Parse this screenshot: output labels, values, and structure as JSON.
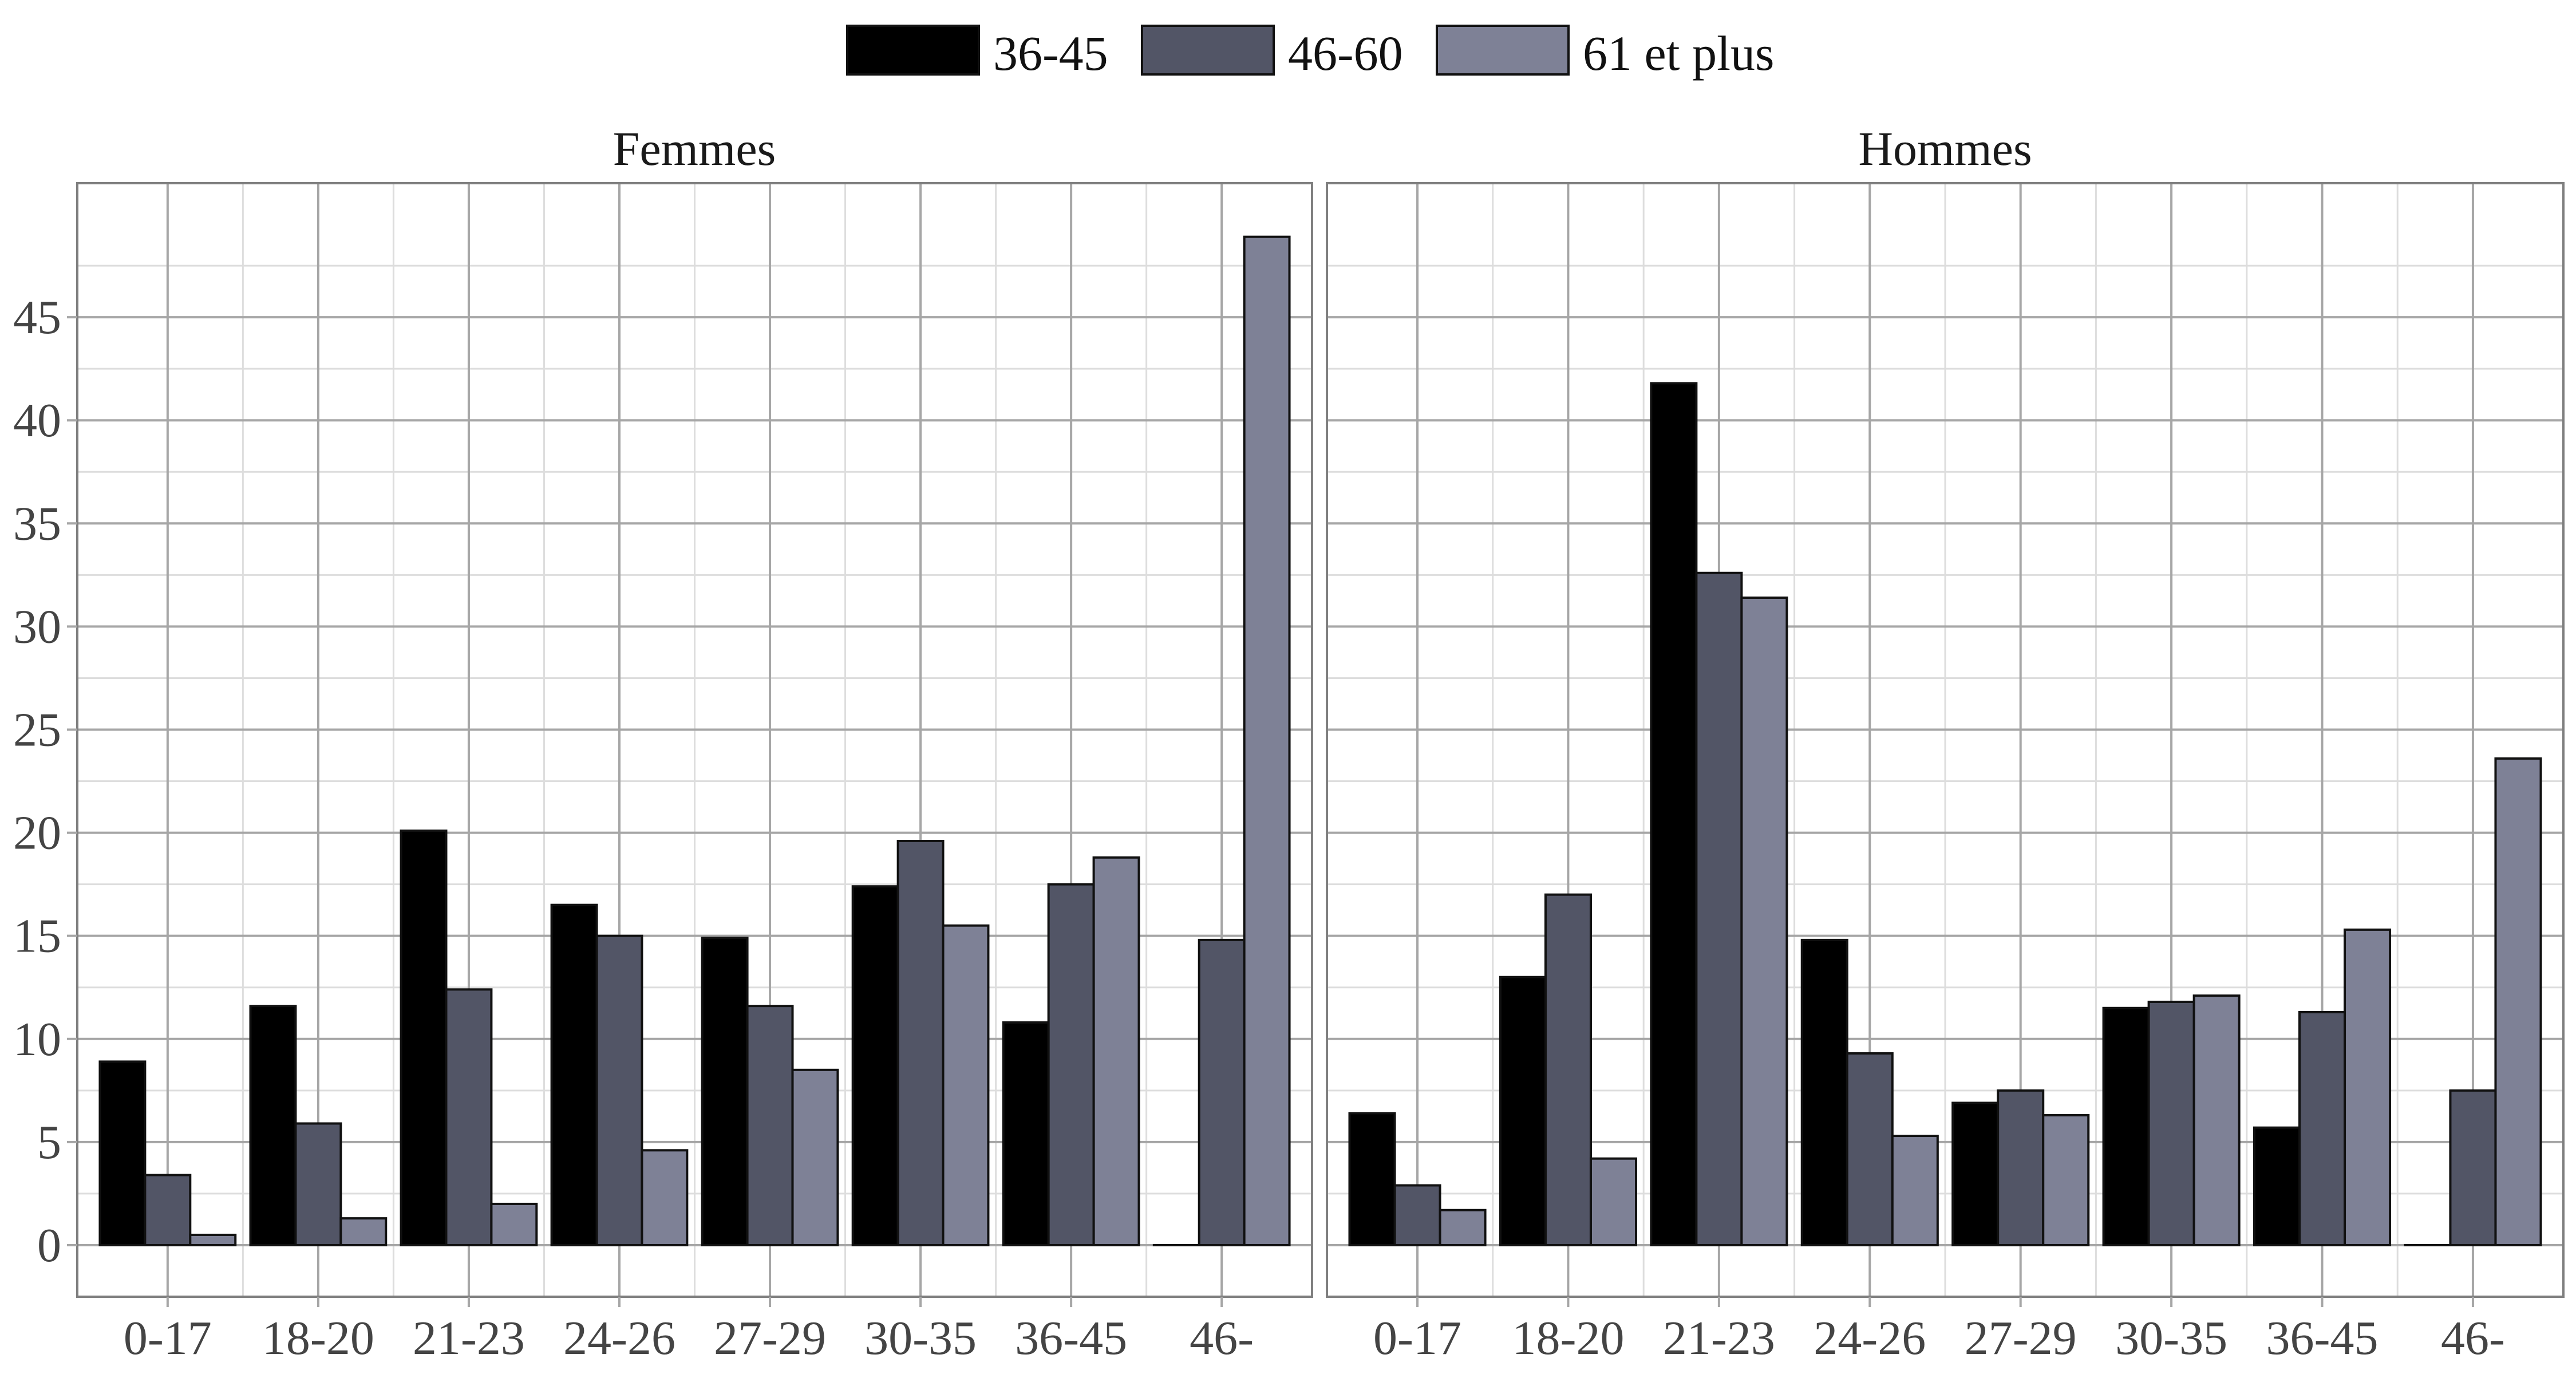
{
  "colors": {
    "series": [
      "#000000",
      "#525566",
      "#7e8196"
    ],
    "grid_major": "#a6a6a6",
    "grid_minor": "#dddddd",
    "panel_border": "#7f7f7f",
    "bar_outline": "#111111",
    "background": "#ffffff"
  },
  "chart_data": {
    "type": "bar",
    "layout": "facets",
    "grid": true,
    "legend_position": "top",
    "categories": [
      "0-17",
      "18-20",
      "21-23",
      "24-26",
      "27-29",
      "30-35",
      "36-45",
      "46-"
    ],
    "legend": [
      "36-45",
      "46-60",
      "61 et plus"
    ],
    "ylim": [
      -2.5,
      51.5
    ],
    "yticks": [
      0,
      5,
      10,
      15,
      20,
      25,
      30,
      35,
      40,
      45
    ],
    "ytick_labels": [
      "0",
      "5",
      "10",
      "15",
      "20",
      "25",
      "30",
      "35",
      "40",
      "45"
    ],
    "xlabel": "",
    "ylabel": "",
    "panels": [
      {
        "title": "Femmes",
        "series": [
          {
            "name": "36-45",
            "values": [
              8.9,
              11.6,
              20.1,
              16.5,
              14.9,
              17.4,
              10.8,
              0
            ]
          },
          {
            "name": "46-60",
            "values": [
              3.4,
              5.9,
              12.4,
              15.0,
              11.6,
              19.6,
              17.5,
              14.8
            ]
          },
          {
            "name": "61 et plus",
            "values": [
              0.5,
              1.3,
              2.0,
              4.6,
              8.5,
              15.5,
              18.8,
              48.9
            ]
          }
        ]
      },
      {
        "title": "Hommes",
        "series": [
          {
            "name": "36-45",
            "values": [
              6.4,
              13.0,
              41.8,
              14.8,
              6.9,
              11.5,
              5.7,
              0
            ]
          },
          {
            "name": "46-60",
            "values": [
              2.9,
              17.0,
              32.6,
              9.3,
              7.5,
              11.8,
              11.3,
              7.5
            ]
          },
          {
            "name": "61 et plus",
            "values": [
              1.7,
              4.2,
              31.4,
              5.3,
              6.3,
              12.1,
              15.3,
              23.6
            ]
          }
        ]
      }
    ]
  }
}
